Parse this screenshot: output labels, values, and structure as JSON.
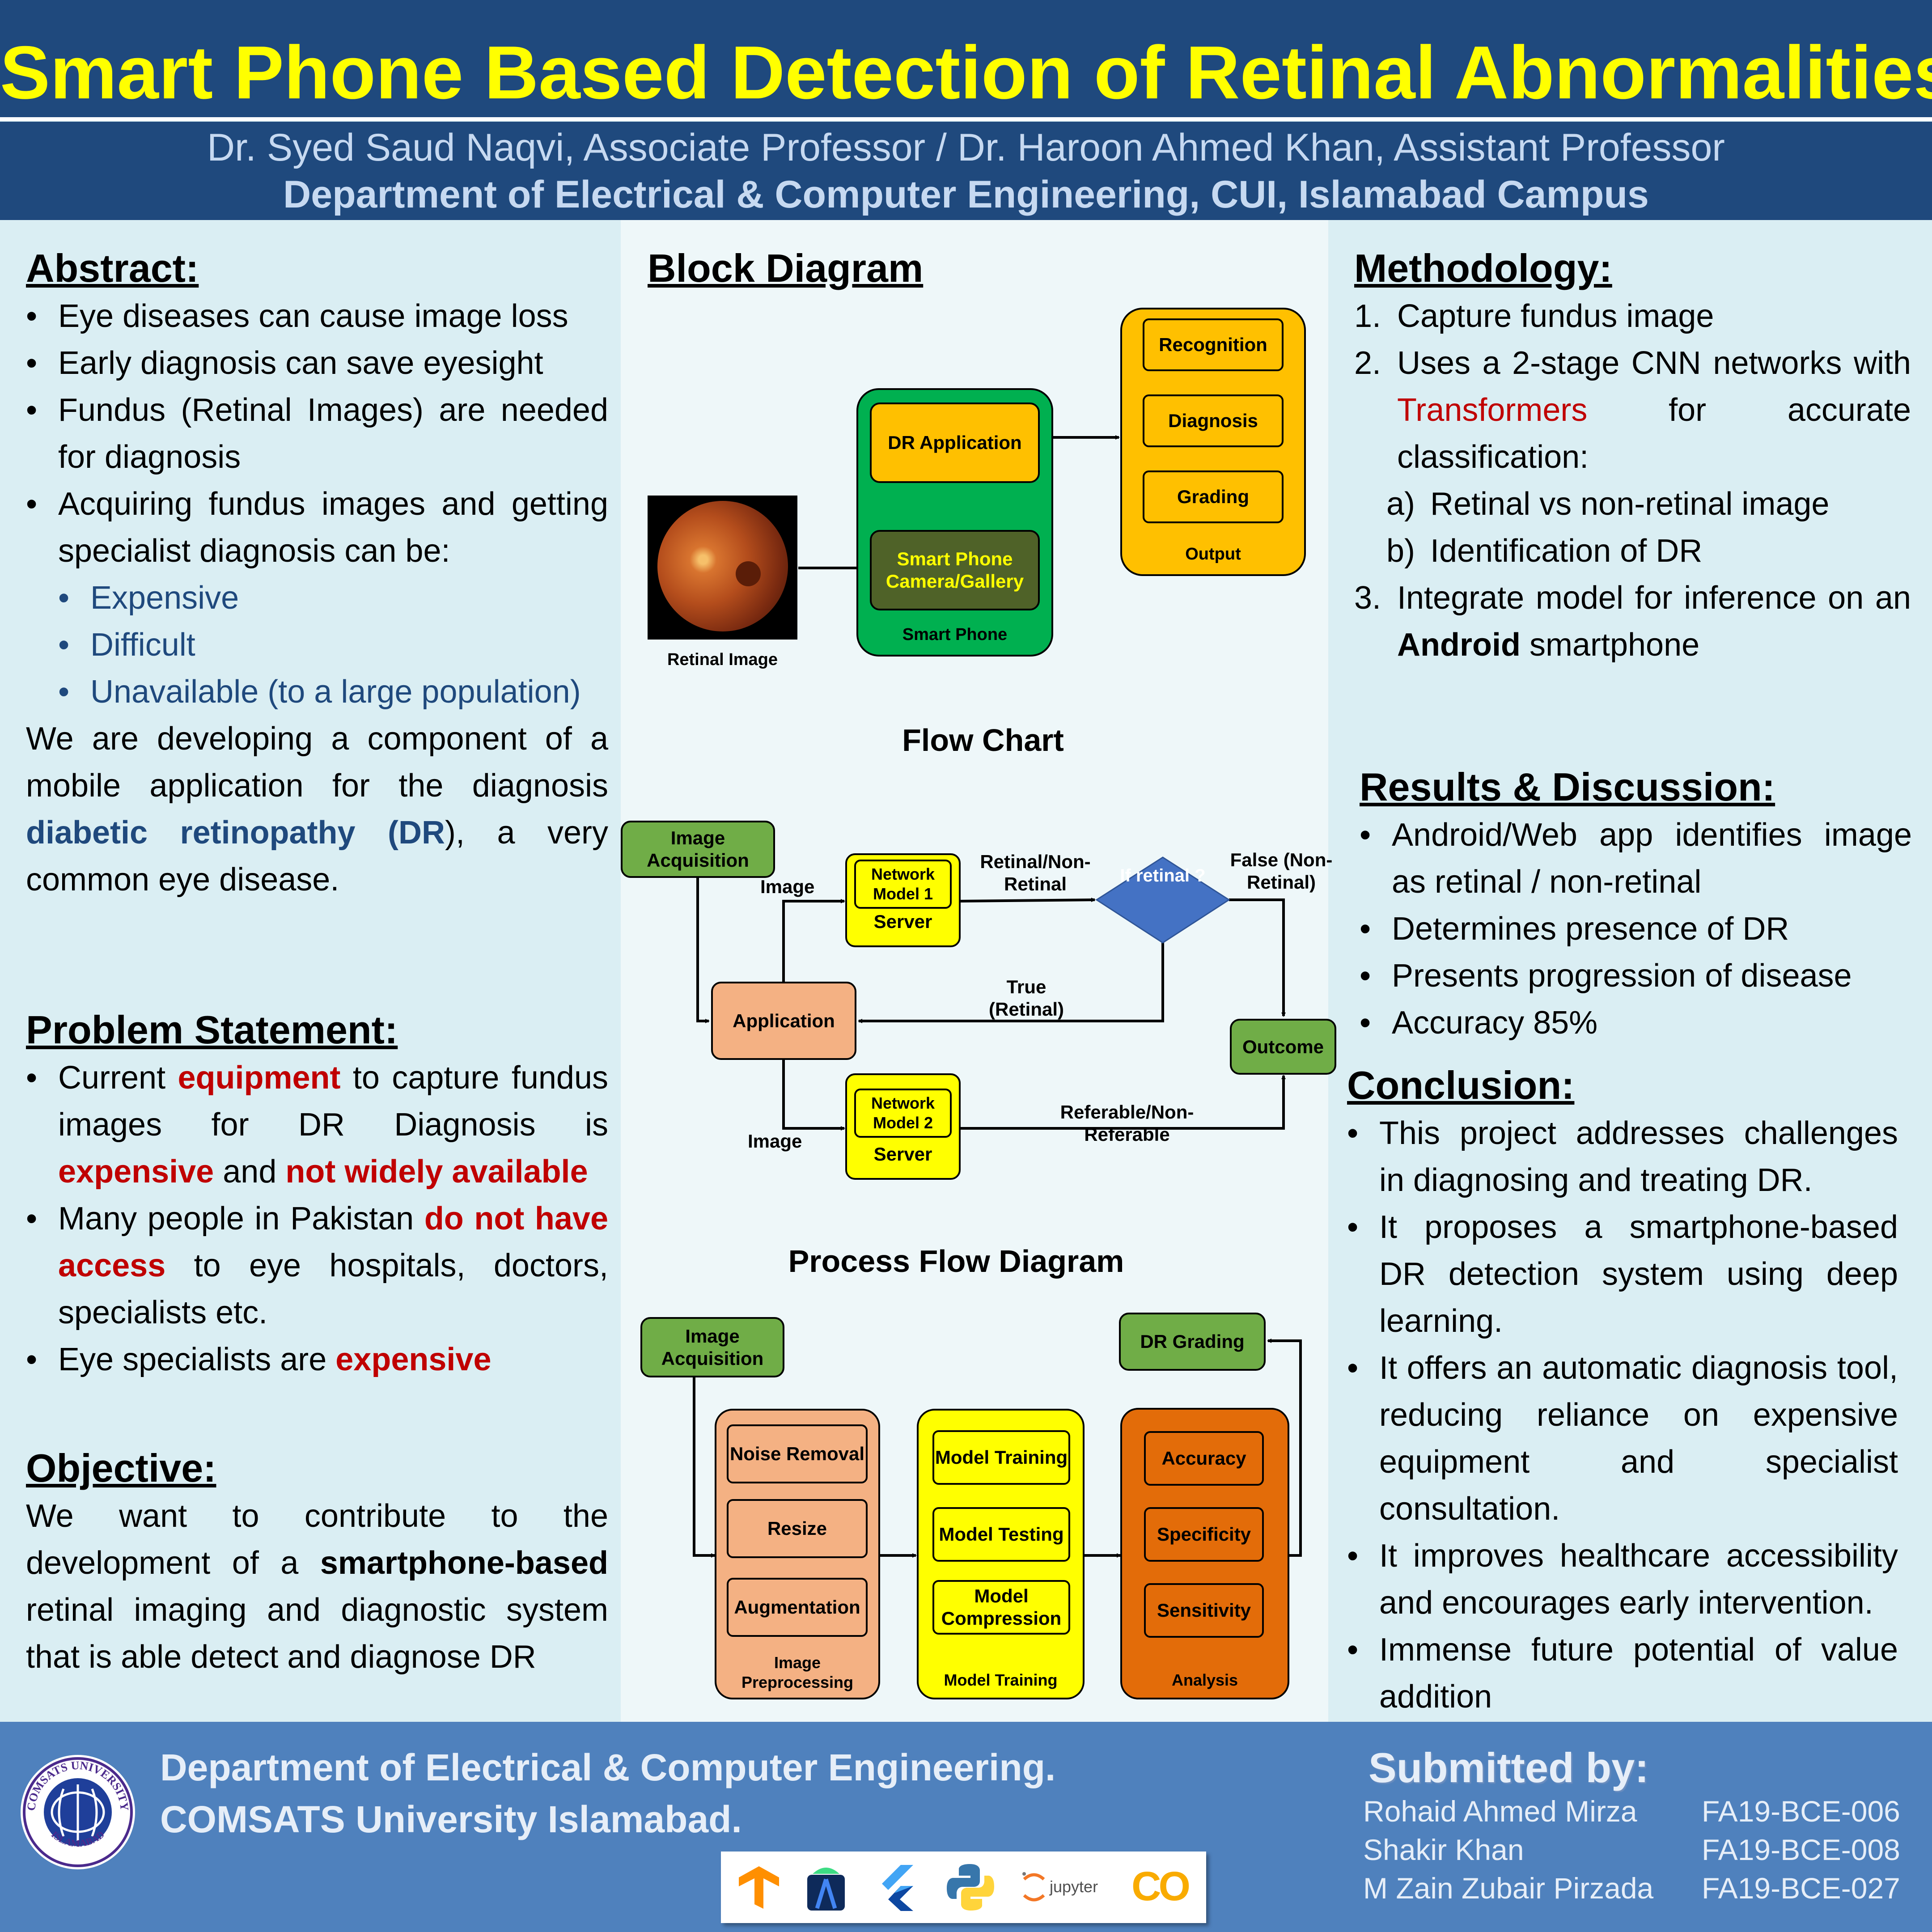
{
  "header": {
    "title": "Smart Phone Based Detection of Retinal Abnormalities",
    "authors": "Dr. Syed Saud Naqvi, Associate Professor / Dr. Haroon Ahmed Khan, Assistant Professor",
    "department": "Department of Electrical & Computer Engineering, CUI, Islamabad Campus"
  },
  "abstract": {
    "heading": "Abstract:",
    "bullets": [
      "Eye diseases can cause image loss",
      "Early diagnosis can save eyesight",
      "Fundus (Retinal Images) are needed for diagnosis",
      "Acquiring fundus images and getting specialist diagnosis can be:"
    ],
    "sub_bullets": [
      "Expensive",
      "Difficult",
      "Unavailable (to a large population)"
    ],
    "para_pre": "We are developing a component of a mobile application for the diagnosis ",
    "para_bold": "diabetic retinopathy (DR",
    "para_post": "), a very common eye disease."
  },
  "problem": {
    "heading": "Problem Statement:",
    "b1_pre": "Current ",
    "b1_red1": "equipment",
    "b1_mid": " to capture fundus images for DR Diagnosis is ",
    "b1_red2": "expensive",
    "b1_and": " and ",
    "b1_red3": "not widely available",
    "b2_pre": "Many people in Pakistan ",
    "b2_red": "do not have access",
    "b2_post": " to eye hospitals, doctors, specialists etc.",
    "b3_pre": "Eye specialists are ",
    "b3_red": "expensive"
  },
  "objective": {
    "heading": "Objective:",
    "pre": "We want to contribute to the development of a ",
    "bold": "smartphone-based",
    "post": " retinal imaging and diagnostic system that is able detect and diagnose DR"
  },
  "block_diagram": {
    "title": "Block Diagram",
    "retinal_image": "Retinal Image",
    "camera": "Smart Phone Camera/Gallery",
    "dr_app": "DR Application",
    "smart_phone": "Smart Phone",
    "recognition": "Recognition",
    "diagnosis": "Diagnosis",
    "grading": "Grading",
    "output": "Output"
  },
  "flow_chart": {
    "title": "Flow Chart",
    "image_acq": "Image Acquisition",
    "application": "Application",
    "image_top": "Image",
    "image_bottom": "Image",
    "net1": "Network Model 1",
    "server1": "Server",
    "net2": "Network Model 2",
    "server2": "Server",
    "retinal_non": "Retinal/Non-Retinal",
    "if_retinal": "If retinal ?",
    "false_label": "False (Non-Retinal)",
    "true_label": "True (Retinal)",
    "outcome": "Outcome",
    "referable": "Referable/Non-Referable"
  },
  "process_flow": {
    "title": "Process Flow Diagram",
    "image_acq": "Image Acquisition",
    "noise": "Noise Removal",
    "resize": "Resize",
    "augmentation": "Augmentation",
    "preprocessing": "Image Preprocessing",
    "training": "Model Training",
    "testing": "Model Testing",
    "compression": "Model Compression",
    "model_training_group": "Model Training",
    "accuracy": "Accuracy",
    "specificity": "Specificity",
    "sensitivity": "Sensitivity",
    "analysis": "Analysis",
    "dr_grading": "DR Grading"
  },
  "methodology": {
    "heading": "Methodology:",
    "s1": "Capture fundus image",
    "s2_pre": "Uses a 2-stage CNN networks with ",
    "s2_red": "Transformers",
    "s2_post": " for accurate classification:",
    "a": "Retinal vs non-retinal image",
    "b": "Identification of DR",
    "s3_pre": "Integrate model for inference on an ",
    "s3_bold": "Android",
    "s3_post": " smartphone"
  },
  "results": {
    "heading": "Results & Discussion:",
    "bullets": [
      "Android/Web app identifies image as retinal / non-retinal",
      "Determines presence of DR",
      "Presents progression of disease",
      "Accuracy 85%"
    ]
  },
  "conclusion": {
    "heading": "Conclusion:",
    "bullets": [
      "This project addresses challenges in diagnosing and treating DR.",
      "It proposes a smartphone-based DR detection system using deep learning.",
      "It offers an automatic diagnosis tool, reducing reliance on expensive equipment and specialist consultation.",
      "It improves healthcare accessibility and encourages early intervention.",
      "Immense future potential of value addition"
    ]
  },
  "footer": {
    "dept_line1": "Department of Electrical & Computer Engineering.",
    "dept_line2": "COMSATS University Islamabad.",
    "seal_top": "COMSATS UNIVERSITY",
    "seal_bottom": "ISLAMABAD",
    "submitted_heading": "Submitted by:",
    "students": [
      {
        "name": "Rohaid Ahmed Mirza",
        "id": "FA19-BCE-006"
      },
      {
        "name": "Shakir Khan",
        "id": "FA19-BCE-008"
      },
      {
        "name": "M Zain Zubair Pirzada",
        "id": "FA19-BCE-027"
      }
    ],
    "jupyter": "jupyter",
    "colab": "CO"
  },
  "colors": {
    "title_bar": "#1f497d",
    "title_text": "#ffff00",
    "footer": "#4f81bd",
    "emphasis_red": "#c00000",
    "emphasis_blue": "#1f497d"
  }
}
